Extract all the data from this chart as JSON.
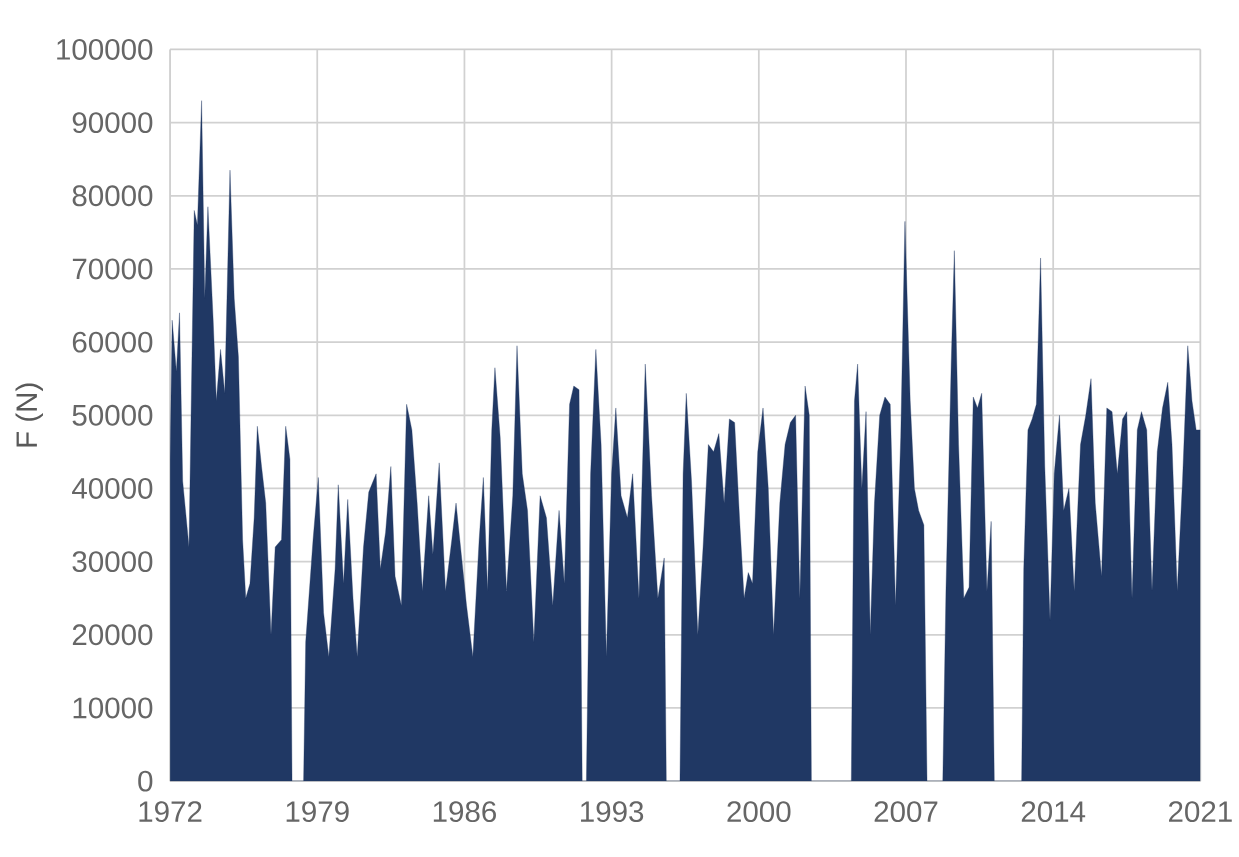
{
  "chart_data": {
    "type": "area",
    "ylabel": "F (N)",
    "color": "#203864",
    "grid": true,
    "xlim": [
      1972,
      2021
    ],
    "xticks": [
      1972,
      1979,
      1986,
      1993,
      2000,
      2007,
      2014,
      2021
    ],
    "ylim": [
      0,
      100000
    ],
    "yticks": [
      0,
      10000,
      20000,
      30000,
      40000,
      50000,
      60000,
      70000,
      80000,
      90000,
      100000
    ],
    "x": [
      1972.0,
      1972.1,
      1972.3,
      1972.45,
      1972.6,
      1972.9,
      1973.15,
      1973.3,
      1973.5,
      1973.65,
      1973.8,
      1974.05,
      1974.2,
      1974.4,
      1974.6,
      1974.85,
      1975.05,
      1975.25,
      1975.45,
      1975.6,
      1975.8,
      1976.0,
      1976.15,
      1976.35,
      1976.55,
      1976.8,
      1977.0,
      1977.3,
      1977.5,
      1977.7,
      1977.8,
      1978.35,
      1978.45,
      1978.8,
      1979.05,
      1979.3,
      1979.55,
      1979.85,
      1980.0,
      1980.25,
      1980.45,
      1980.7,
      1980.9,
      1981.2,
      1981.45,
      1981.8,
      1982.0,
      1982.25,
      1982.5,
      1982.7,
      1983.0,
      1983.25,
      1983.5,
      1983.75,
      1984.0,
      1984.3,
      1984.5,
      1984.8,
      1985.1,
      1985.4,
      1985.6,
      1985.85,
      1986.1,
      1986.4,
      1986.7,
      1986.9,
      1987.1,
      1987.3,
      1987.45,
      1987.7,
      1988.0,
      1988.3,
      1988.5,
      1988.75,
      1989.0,
      1989.3,
      1989.6,
      1989.9,
      1990.2,
      1990.5,
      1990.75,
      1991.0,
      1991.2,
      1991.45,
      1991.6,
      1991.8,
      1992.0,
      1992.25,
      1992.5,
      1992.75,
      1993.0,
      1993.2,
      1993.45,
      1993.75,
      1994.0,
      1994.3,
      1994.6,
      1994.9,
      1995.2,
      1995.5,
      1995.6,
      1996.25,
      1996.4,
      1996.55,
      1996.8,
      1997.1,
      1997.35,
      1997.6,
      1997.85,
      1998.1,
      1998.35,
      1998.6,
      1998.85,
      1999.1,
      1999.3,
      1999.5,
      1999.7,
      1999.95,
      2000.2,
      2000.45,
      2000.7,
      2001.0,
      2001.25,
      2001.5,
      2001.75,
      2001.95,
      2002.2,
      2002.4,
      2002.5,
      2004.4,
      2004.55,
      2004.7,
      2004.9,
      2005.1,
      2005.3,
      2005.5,
      2005.75,
      2006.0,
      2006.25,
      2006.5,
      2006.75,
      2006.95,
      2007.2,
      2007.4,
      2007.6,
      2007.85,
      2008.0,
      2008.75,
      2008.9,
      2009.15,
      2009.3,
      2009.5,
      2009.75,
      2010.0,
      2010.2,
      2010.4,
      2010.6,
      2010.85,
      2011.05,
      2011.2,
      2012.5,
      2012.6,
      2012.8,
      2013.0,
      2013.2,
      2013.4,
      2013.6,
      2013.85,
      2014.05,
      2014.3,
      2014.5,
      2014.75,
      2015.0,
      2015.3,
      2015.55,
      2015.8,
      2016.0,
      2016.3,
      2016.55,
      2016.8,
      2017.05,
      2017.3,
      2017.5,
      2017.75,
      2018.0,
      2018.2,
      2018.45,
      2018.7,
      2018.95,
      2019.2,
      2019.45,
      2019.65,
      2019.9,
      2020.15,
      2020.4,
      2020.6,
      2020.8,
      2021.0
    ],
    "values": [
      44000,
      63000,
      56000,
      64000,
      41000,
      32000,
      78000,
      76000,
      93000,
      66000,
      78500,
      63000,
      52000,
      59000,
      53000,
      83500,
      66000,
      58000,
      33000,
      25000,
      27000,
      36000,
      48500,
      43000,
      38000,
      20000,
      32000,
      33000,
      48500,
      44000,
      0,
      0,
      19000,
      33000,
      41500,
      23000,
      17000,
      29000,
      40500,
      27000,
      38500,
      25000,
      17000,
      32000,
      39500,
      42000,
      29000,
      34000,
      43000,
      28000,
      24000,
      51500,
      48000,
      38000,
      26000,
      39000,
      31000,
      43500,
      26000,
      33000,
      38000,
      31000,
      24000,
      17000,
      33000,
      41500,
      26000,
      48000,
      56500,
      47000,
      26000,
      39000,
      59500,
      42000,
      37000,
      19000,
      39000,
      36000,
      24000,
      37000,
      27000,
      51500,
      54000,
      53500,
      0,
      0,
      42000,
      59000,
      46000,
      17000,
      42000,
      51000,
      39000,
      36000,
      42000,
      25000,
      57000,
      39000,
      25000,
      30500,
      0,
      0,
      42000,
      53000,
      41000,
      20000,
      32000,
      46000,
      45000,
      47500,
      38000,
      49500,
      49000,
      35000,
      25000,
      28500,
      27000,
      45000,
      51000,
      40000,
      20000,
      38000,
      46000,
      49000,
      50000,
      25000,
      54000,
      50000,
      0,
      0,
      52000,
      57000,
      40000,
      50500,
      20000,
      38000,
      50000,
      52500,
      51500,
      24000,
      47000,
      76500,
      52000,
      40000,
      37000,
      35000,
      0,
      0,
      26000,
      57000,
      72500,
      46000,
      25000,
      26500,
      52500,
      51000,
      53000,
      26000,
      35500,
      0,
      0,
      29000,
      48000,
      49500,
      51500,
      71500,
      43000,
      22000,
      42000,
      50000,
      37000,
      40000,
      26000,
      46000,
      50000,
      55000,
      38000,
      28000,
      51000,
      50500,
      42000,
      49500,
      50500,
      25000,
      48000,
      50500,
      48000,
      26000,
      45000,
      51000,
      54500,
      46000,
      26000,
      41000,
      59500,
      52000,
      48000,
      48000
    ]
  }
}
